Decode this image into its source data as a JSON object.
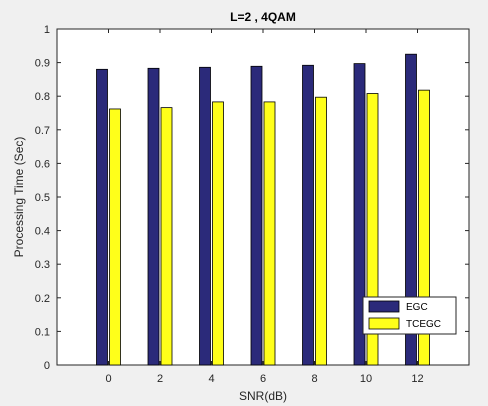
{
  "chart_data": {
    "type": "bar",
    "title": "L=2 , 4QAM",
    "xlabel": "SNR(dB)",
    "ylabel": "Processing Time (Sec)",
    "categories": [
      "0",
      "2",
      "4",
      "6",
      "8",
      "10",
      "12"
    ],
    "ylim": [
      0,
      1
    ],
    "yticks": [
      "0",
      "0.1",
      "0.2",
      "0.3",
      "0.4",
      "0.5",
      "0.6",
      "0.7",
      "0.8",
      "0.9",
      "1"
    ],
    "grid": false,
    "legend_position": "bottom-right",
    "series": [
      {
        "name": "EGC",
        "color": "#2b2a7a",
        "values": [
          0.88,
          0.883,
          0.886,
          0.889,
          0.892,
          0.897,
          0.925
        ]
      },
      {
        "name": "TCEGC",
        "color": "#ffff1a",
        "values": [
          0.762,
          0.766,
          0.783,
          0.783,
          0.797,
          0.808,
          0.818
        ]
      }
    ]
  }
}
